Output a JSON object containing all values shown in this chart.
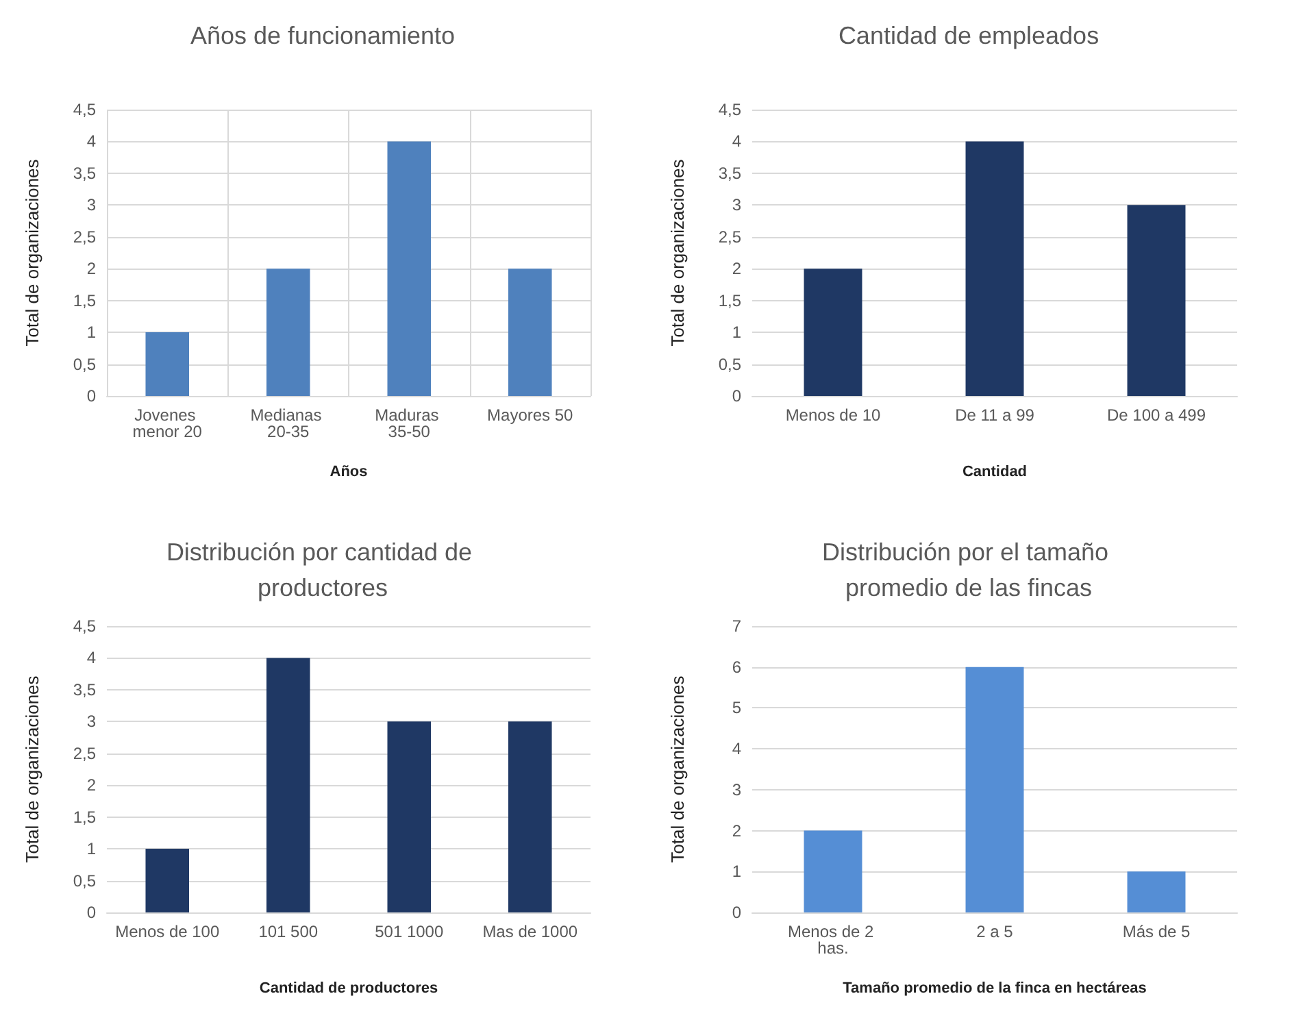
{
  "chart_data": [
    {
      "type": "bar",
      "title": "Años de funcionamiento",
      "xlabel": "Años",
      "ylabel": "Total de organizaciones",
      "categories": [
        "Jovenes menor 20",
        "Medianas 20-35",
        "Maduras 35-50",
        "Mayores 50"
      ],
      "values": [
        1,
        2,
        4,
        2
      ],
      "color": "#4f81bd",
      "ylim": [
        0,
        4.5
      ],
      "yticks": [
        0,
        {
          "value": 0.5,
          "label": "0,5"
        },
        1,
        {
          "value": 1.5,
          "label": "1,5"
        },
        2,
        {
          "value": 2.5,
          "label": "2,5"
        },
        3,
        {
          "value": 3.5,
          "label": "3,5"
        },
        4,
        {
          "value": 4.5,
          "label": "4,5"
        }
      ],
      "grid": true
    },
    {
      "type": "bar",
      "title": "Cantidad de empleados",
      "xlabel": "Cantidad",
      "ylabel": "Total de organizaciones",
      "categories": [
        "Menos de 10",
        "De 11 a 99",
        "De 100 a 499"
      ],
      "values": [
        2,
        4,
        3
      ],
      "color": "#1f3864",
      "ylim": [
        0,
        4.5
      ],
      "yticks": [
        0,
        {
          "value": 0.5,
          "label": "0,5"
        },
        1,
        {
          "value": 1.5,
          "label": "1,5"
        },
        2,
        {
          "value": 2.5,
          "label": "2,5"
        },
        3,
        {
          "value": 3.5,
          "label": "3,5"
        },
        4,
        {
          "value": 4.5,
          "label": "4,5"
        }
      ],
      "grid": "y"
    },
    {
      "type": "bar",
      "title": "Distribución por cantidad de productores",
      "xlabel": "Cantidad de productores",
      "ylabel": "Total de organizaciones",
      "categories": [
        "Menos de 100",
        "101 500",
        "501 1000",
        "Mas de 1000"
      ],
      "values": [
        1,
        4,
        3,
        3
      ],
      "color": "#1f3864",
      "ylim": [
        0,
        4.5
      ],
      "yticks": [
        0,
        {
          "value": 0.5,
          "label": "0,5"
        },
        1,
        {
          "value": 1.5,
          "label": "1,5"
        },
        2,
        {
          "value": 2.5,
          "label": "2,5"
        },
        3,
        {
          "value": 3.5,
          "label": "3,5"
        },
        4,
        {
          "value": 4.5,
          "label": "4,5"
        }
      ],
      "grid": "y"
    },
    {
      "type": "bar",
      "title": "Distribución por el tamaño promedio de las fincas",
      "xlabel": "Tamaño promedio de la finca en hectáreas",
      "ylabel": "Total de organizaciones",
      "categories": [
        "Menos de 2 has.",
        "2 a 5",
        "Más de 5"
      ],
      "values": [
        2,
        6,
        1
      ],
      "color": "#558ed5",
      "ylim": [
        0,
        7
      ],
      "yticks": [
        0,
        1,
        2,
        3,
        4,
        5,
        6,
        7
      ],
      "grid": "y"
    }
  ]
}
